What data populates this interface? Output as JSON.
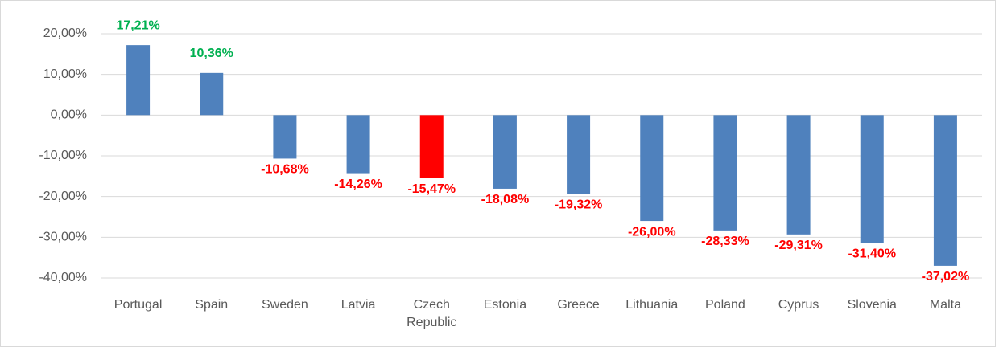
{
  "chart_data": {
    "type": "bar",
    "categories": [
      "Portugal",
      "Spain",
      "Sweden",
      "Latvia",
      "Czech Republic",
      "Estonia",
      "Greece",
      "Lithuania",
      "Poland",
      "Cyprus",
      "Slovenia",
      "Malta"
    ],
    "values": [
      17.21,
      10.36,
      -10.68,
      -14.26,
      -15.47,
      -18.08,
      -19.32,
      -26.0,
      -28.33,
      -29.31,
      -31.4,
      -37.02
    ],
    "value_labels": [
      "17,21%",
      "10,36%",
      "-10,68%",
      "-14,26%",
      "-15,47%",
      "-18,08%",
      "-19,32%",
      "-26,00%",
      "-28,33%",
      "-29,31%",
      "-31,40%",
      "-37,02%"
    ],
    "colors": [
      "#4f81bd",
      "#4f81bd",
      "#4f81bd",
      "#4f81bd",
      "#ff0000",
      "#4f81bd",
      "#4f81bd",
      "#4f81bd",
      "#4f81bd",
      "#4f81bd",
      "#4f81bd",
      "#4f81bd"
    ],
    "positive_label_color": "#00b050",
    "negative_label_color": "#ff0000",
    "ylim": [
      -40,
      20
    ],
    "yticks": [
      {
        "value": -40,
        "label": "-40,00%"
      },
      {
        "value": -30,
        "label": "-30,00%"
      },
      {
        "value": -20,
        "label": "-20,00%"
      },
      {
        "value": -10,
        "label": "-10,00%"
      },
      {
        "value": 0,
        "label": "0,00%"
      },
      {
        "value": 10,
        "label": "10,00%"
      },
      {
        "value": 20,
        "label": "20,00%"
      }
    ],
    "grid": true
  }
}
